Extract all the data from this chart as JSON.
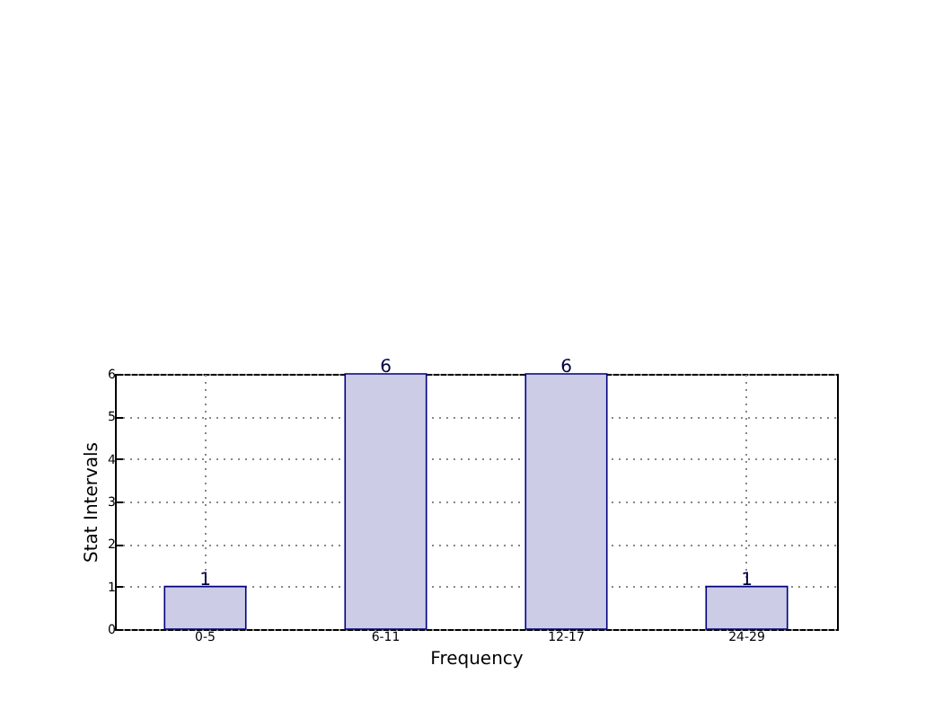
{
  "chart_data": {
    "type": "bar",
    "xlabel": "Frequency",
    "ylabel": "Stat Intervals",
    "categories": [
      "0-5",
      "6-11",
      "12-17",
      "24-29"
    ],
    "values": [
      1,
      6,
      6,
      1
    ],
    "color": "#cccce6",
    "ylim": [
      0,
      6
    ],
    "yticks": [
      0,
      1,
      2,
      3,
      4,
      5,
      6
    ],
    "grid": true,
    "data_labels": true
  }
}
